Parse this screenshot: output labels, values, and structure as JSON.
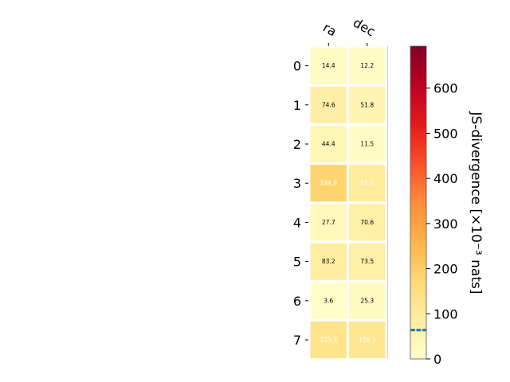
{
  "chart_data": {
    "type": "heatmap",
    "x_labels": [
      "ra",
      "dec"
    ],
    "y_labels": [
      "0",
      "1",
      "2",
      "3",
      "4",
      "5",
      "6",
      "7"
    ],
    "values": [
      [
        14.4,
        12.2
      ],
      [
        74.6,
        51.8
      ],
      [
        44.4,
        11.5
      ],
      [
        184.9,
        95.9
      ],
      [
        27.7,
        70.6
      ],
      [
        83.2,
        73.5
      ],
      [
        3.6,
        25.3
      ],
      [
        125.3,
        116.1
      ]
    ],
    "colorbar": {
      "label": "JS-divergence [×10⁻³ nats]",
      "range": [
        0,
        693
      ],
      "ticks": [
        "0",
        "100",
        "200",
        "300",
        "400",
        "500",
        "600"
      ],
      "tick_values": [
        0,
        100,
        200,
        300,
        400,
        500,
        600
      ],
      "marker_value": 64,
      "marker_color": "#1f77b4",
      "colormap": "YlOrRd"
    },
    "text_colors": {
      "dark": "#000000",
      "light": "#ffffff"
    },
    "light_text_threshold": 90
  }
}
